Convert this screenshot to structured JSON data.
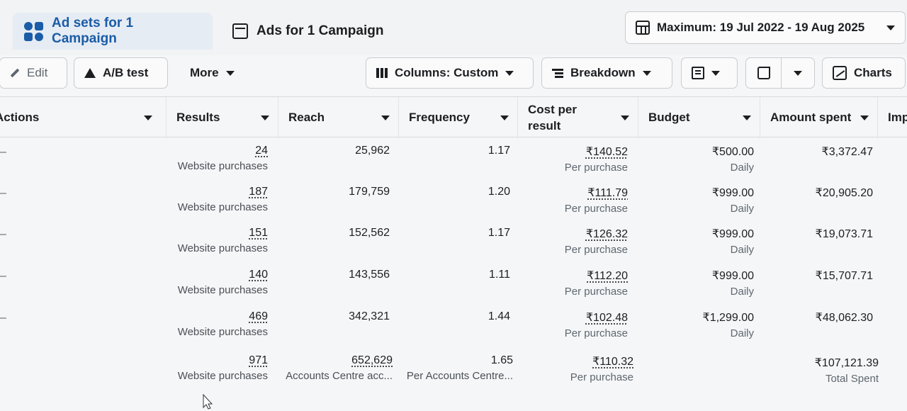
{
  "tabs": [
    {
      "label": "Ad sets for 1 Campaign",
      "active": true,
      "icon": "adsets-grid-icon"
    },
    {
      "label": "Ads for 1 Campaign",
      "active": false,
      "icon": "ad-page-icon"
    }
  ],
  "date_range": {
    "label": "Maximum: 19 Jul 2022 - 19 Aug 2025"
  },
  "toolbar": {
    "edit": "Edit",
    "ab_test": "A/B test",
    "more": "More",
    "columns": "Columns: Custom",
    "breakdown": "Breakdown",
    "charts": "Charts"
  },
  "columns": {
    "actions": "Actions",
    "results": "Results",
    "reach": "Reach",
    "frequency": "Frequency",
    "cost_line1": "Cost per",
    "cost_line2": "result",
    "budget": "Budget",
    "amount": "Amount spent",
    "impressions": "Imp"
  },
  "rows": [
    {
      "results": "24",
      "results_sub": "Website purchases",
      "reach": "25,962",
      "frequency": "1.17",
      "cost": "₹140.52",
      "cost_sub": "Per purchase",
      "budget": "₹500.00",
      "budget_sub": "Daily",
      "amount": "₹3,372.47"
    },
    {
      "results": "187",
      "results_sub": "Website purchases",
      "reach": "179,759",
      "frequency": "1.20",
      "cost": "₹111.79",
      "cost_sub": "Per purchase",
      "budget": "₹999.00",
      "budget_sub": "Daily",
      "amount": "₹20,905.20"
    },
    {
      "results": "151",
      "results_sub": "Website purchases",
      "reach": "152,562",
      "frequency": "1.17",
      "cost": "₹126.32",
      "cost_sub": "Per purchase",
      "budget": "₹999.00",
      "budget_sub": "Daily",
      "amount": "₹19,073.71"
    },
    {
      "results": "140",
      "results_sub": "Website purchases",
      "reach": "143,556",
      "frequency": "1.11",
      "cost": "₹112.20",
      "cost_sub": "Per purchase",
      "budget": "₹999.00",
      "budget_sub": "Daily",
      "amount": "₹15,707.71"
    },
    {
      "results": "469",
      "results_sub": "Website purchases",
      "reach": "342,321",
      "frequency": "1.44",
      "cost": "₹102.48",
      "cost_sub": "Per purchase",
      "budget": "₹1,299.00",
      "budget_sub": "Daily",
      "amount": "₹48,062.30"
    }
  ],
  "total": {
    "results": "971",
    "results_sub": "Website purchases",
    "reach": "652,629",
    "reach_sub": "Accounts Centre acc...",
    "frequency": "1.65",
    "frequency_sub": "Per Accounts Centre...",
    "cost": "₹110.32",
    "cost_sub": "Per purchase",
    "amount": "₹107,121.39",
    "amount_sub": "Total Spent"
  },
  "colors": {
    "accent": "#1a5ca8",
    "muted": "#606770"
  }
}
